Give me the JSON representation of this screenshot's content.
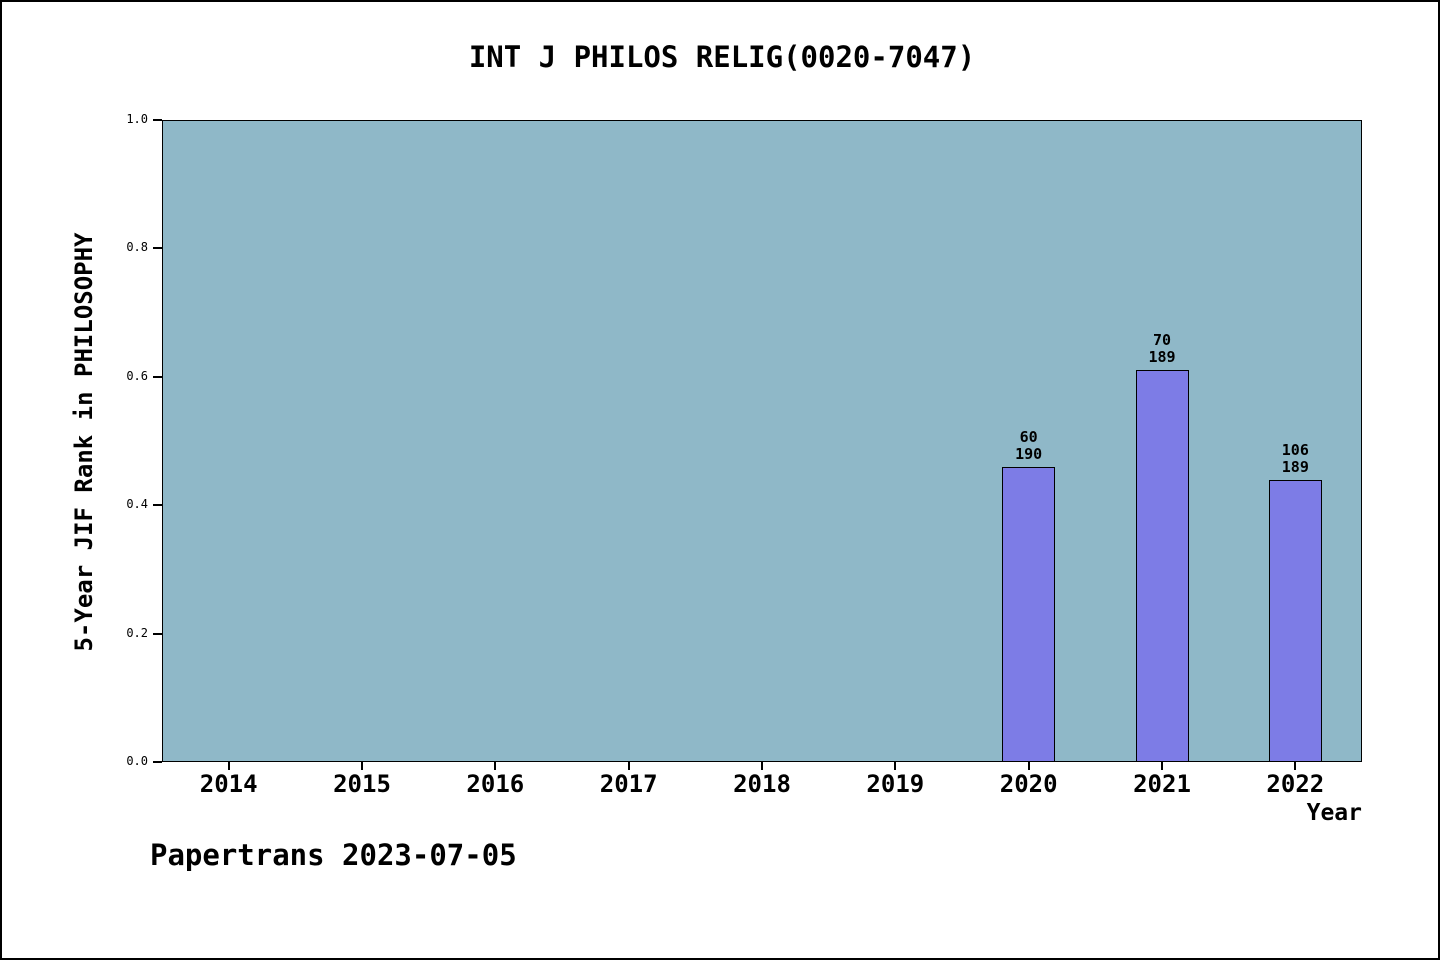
{
  "footer": {
    "text": "Papertrans 2023-07-05"
  },
  "chart_data": {
    "type": "bar",
    "title": "INT J PHILOS RELIG(0020-7047)",
    "xlabel": "Year",
    "ylabel": "5-Year JIF Rank in PHILOSOPHY",
    "categories": [
      "2014",
      "2015",
      "2016",
      "2017",
      "2018",
      "2019",
      "2020",
      "2021",
      "2022"
    ],
    "yticks": [
      "0.0",
      "0.2",
      "0.4",
      "0.6",
      "0.8",
      "1.0"
    ],
    "ylim": [
      0,
      1
    ],
    "grid": false,
    "legend": null,
    "plot_bg_color": "#8fb8c8",
    "bar_color": "#7d7ce6",
    "bars": [
      {
        "category": "2020",
        "value": 0.46,
        "label_lines": [
          "60",
          "190"
        ]
      },
      {
        "category": "2021",
        "value": 0.61,
        "label_lines": [
          "70",
          "189"
        ]
      },
      {
        "category": "2022",
        "value": 0.44,
        "label_lines": [
          "106",
          "189"
        ]
      }
    ]
  }
}
